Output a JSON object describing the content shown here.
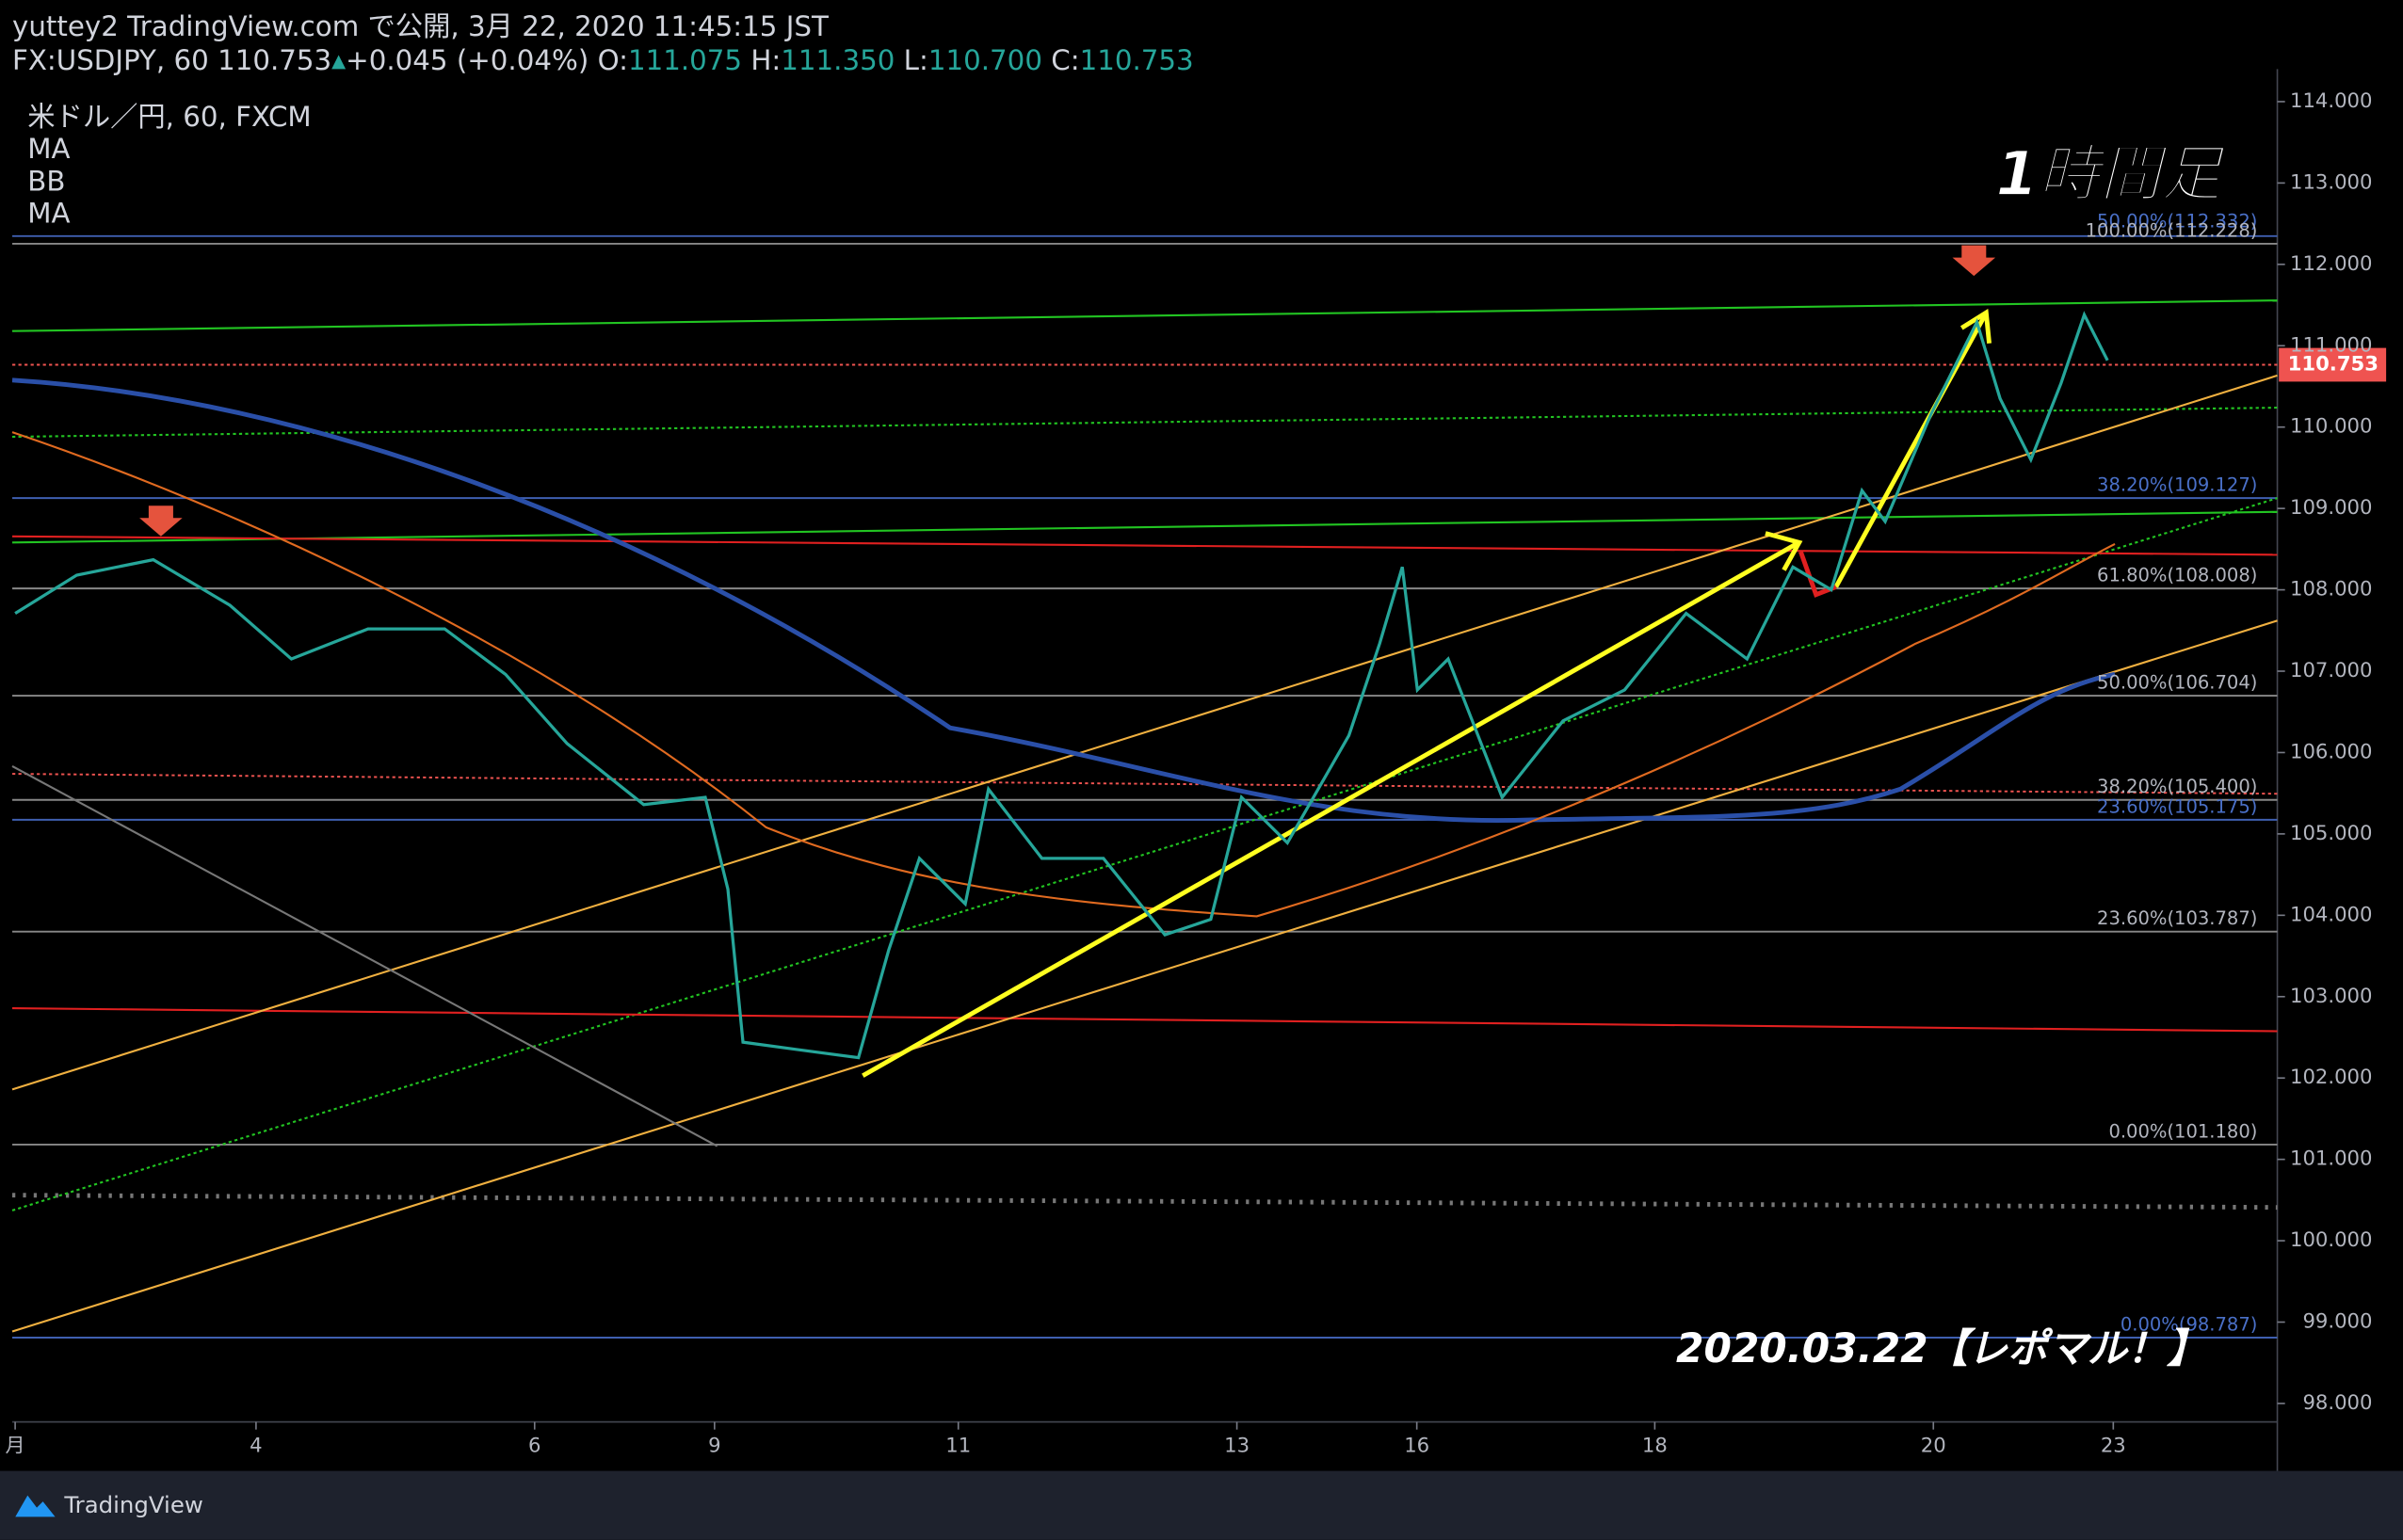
{
  "header": {
    "line1": "yuttey2 TradingView.com で公開, 3月 22, 2020 11:45:15 JST",
    "symbol": "FX:USDJPY, 60 110.753",
    "arrow": "▲",
    "change": "+0.045 (+0.04%)",
    "o_label": "O:",
    "o": "111.075",
    "h_label": "H:",
    "h": "111.350",
    "l_label": "L:",
    "l": "110.700",
    "c_label": "C:",
    "c": "110.753"
  },
  "chart_data": {
    "type": "line",
    "indicators": [
      "米ドル／円, 60, FXCM",
      "MA",
      "BB",
      "MA"
    ],
    "annotation": "1時間足",
    "footer_note": "2020.03.22【レポマル！】",
    "price_label": "110.753",
    "fib_labels": [
      "50.00%(112.332)",
      "100.00%(112.228)",
      "38.20%(109.127)",
      "61.80%(108.008)",
      "50.00%(106.704)",
      "38.20%(105.400)",
      "23.60%(105.175)",
      "23.60%(103.787)",
      "0.00%(101.180)",
      "0.00%(98.787)"
    ],
    "x": [
      0.5,
      11.1,
      24.3,
      37.5,
      48.1,
      61.3,
      74.5,
      85.0,
      95.6,
      108.8,
      119.4,
      123.3,
      125.9,
      135.2,
      145.8,
      151.0,
      156.3,
      164.2,
      168.2,
      177.4,
      188.0,
      198.6,
      206.5,
      211.8,
      219.7,
      230.3,
      235.6,
      239.5,
      242.1,
      247.4,
      256.7,
      267.2,
      277.8,
      288.4,
      298.9,
      306.8,
      313.4,
      318.7,
      322.7,
      330.6,
      338.5,
      342.5,
      347.8,
      353.0,
      357.0,
      361.0
    ],
    "values": [
      107.71,
      108.18,
      108.37,
      107.81,
      107.15,
      107.52,
      107.52,
      106.96,
      106.11,
      105.36,
      105.45,
      104.32,
      102.44,
      102.35,
      102.25,
      103.57,
      104.7,
      104.14,
      105.55,
      104.7,
      104.7,
      103.76,
      103.95,
      105.45,
      104.89,
      106.21,
      107.34,
      108.28,
      106.77,
      107.15,
      105.45,
      106.39,
      106.77,
      107.71,
      107.15,
      108.28,
      108.0,
      109.22,
      108.84,
      110.16,
      111.29,
      110.35,
      109.6,
      110.54,
      111.38,
      110.82
    ],
    "color": "#26a69a",
    "xlim": [
      0,
      390
    ],
    "ylim": [
      97.83,
      114.4
    ],
    "xticks": [
      {
        "value": 0.5,
        "label": "月"
      },
      {
        "value": 42,
        "label": "4"
      },
      {
        "value": 90,
        "label": "6"
      },
      {
        "value": 121,
        "label": "9"
      },
      {
        "value": 163,
        "label": "11"
      },
      {
        "value": 211,
        "label": "13"
      },
      {
        "value": 242,
        "label": "16"
      },
      {
        "value": 283,
        "label": "18"
      },
      {
        "value": 331,
        "label": "20"
      },
      {
        "value": 362,
        "label": "23"
      }
    ],
    "yticks": [
      {
        "value": 98,
        "label": "98.000"
      },
      {
        "value": 99,
        "label": "99.000"
      },
      {
        "value": 100,
        "label": "100.000"
      },
      {
        "value": 101,
        "label": "101.000"
      },
      {
        "value": 102,
        "label": "102.000"
      },
      {
        "value": 103,
        "label": "103.000"
      },
      {
        "value": 104,
        "label": "104.000"
      },
      {
        "value": 105,
        "label": "105.000"
      },
      {
        "value": 106,
        "label": "106.000"
      },
      {
        "value": 107,
        "label": "107.000"
      },
      {
        "value": 108,
        "label": "108.000"
      },
      {
        "value": 109,
        "label": "109.000"
      },
      {
        "value": 110,
        "label": "110.000"
      },
      {
        "value": 111,
        "label": "111.000"
      },
      {
        "value": 112,
        "label": "112.000"
      },
      {
        "value": 113,
        "label": "113.000"
      },
      {
        "value": 114,
        "label": "114.000"
      }
    ],
    "grid": false
  }
}
